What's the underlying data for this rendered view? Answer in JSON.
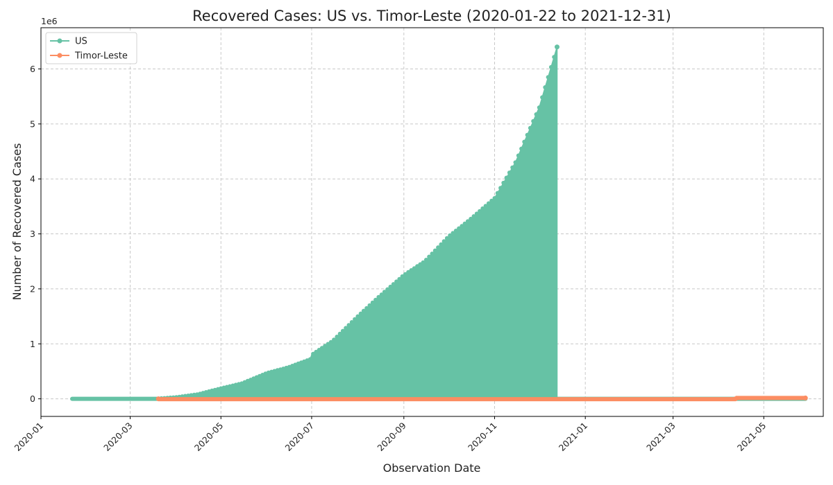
{
  "chart_data": {
    "type": "line",
    "title": "Recovered Cases: US vs. Timor-Leste (2020-01-22 to 2021-12-31)",
    "xlabel": "Observation Date",
    "ylabel": "Number of Recovered Cases",
    "y_offset_label": "1e6",
    "y_scale": 1000000,
    "xlim": [
      "2020-01-01",
      "2021-06-10"
    ],
    "ylim": [
      -0.32,
      6.75
    ],
    "x_ticks": [
      "2020-01",
      "2020-03",
      "2020-05",
      "2020-07",
      "2020-09",
      "2020-11",
      "2021-01",
      "2021-03",
      "2021-05"
    ],
    "y_ticks": [
      0,
      1,
      2,
      3,
      4,
      5,
      6
    ],
    "grid": true,
    "legend_position": "top-left",
    "series": [
      {
        "name": "US",
        "color": "#66c2a5",
        "style": "dense-oscillating (values alternate with zero after 2020-03)",
        "envelope": [
          [
            "2020-01-22",
            0
          ],
          [
            "2020-03-20",
            0.005
          ],
          [
            "2020-04-01",
            0.03
          ],
          [
            "2020-04-15",
            0.08
          ],
          [
            "2020-05-01",
            0.19
          ],
          [
            "2020-05-15",
            0.28
          ],
          [
            "2020-06-01",
            0.47
          ],
          [
            "2020-06-15",
            0.57
          ],
          [
            "2020-06-30",
            0.72
          ],
          [
            "2020-07-01",
            0.8
          ],
          [
            "2020-07-15",
            1.05
          ],
          [
            "2020-08-01",
            1.5
          ],
          [
            "2020-08-15",
            1.85
          ],
          [
            "2020-09-01",
            2.25
          ],
          [
            "2020-09-15",
            2.5
          ],
          [
            "2020-10-01",
            2.95
          ],
          [
            "2020-10-15",
            3.25
          ],
          [
            "2020-11-01",
            3.65
          ],
          [
            "2020-11-15",
            4.3
          ],
          [
            "2020-12-01",
            5.3
          ],
          [
            "2020-12-13",
            6.4
          ]
        ],
        "tail": [
          [
            "2020-12-14",
            0
          ],
          [
            "2021-05-29",
            0
          ]
        ]
      },
      {
        "name": "Timor-Leste",
        "color": "#fc8d62",
        "start": "2020-03-20",
        "end": "2021-05-29",
        "values": [
          [
            "2020-03-20",
            0
          ],
          [
            "2020-04-15",
            2e-05
          ],
          [
            "2020-12-14",
            3e-05
          ],
          [
            "2021-04-12",
            0.0003
          ],
          [
            "2021-04-13",
            0.015
          ],
          [
            "2021-05-29",
            0.015
          ]
        ]
      }
    ]
  }
}
